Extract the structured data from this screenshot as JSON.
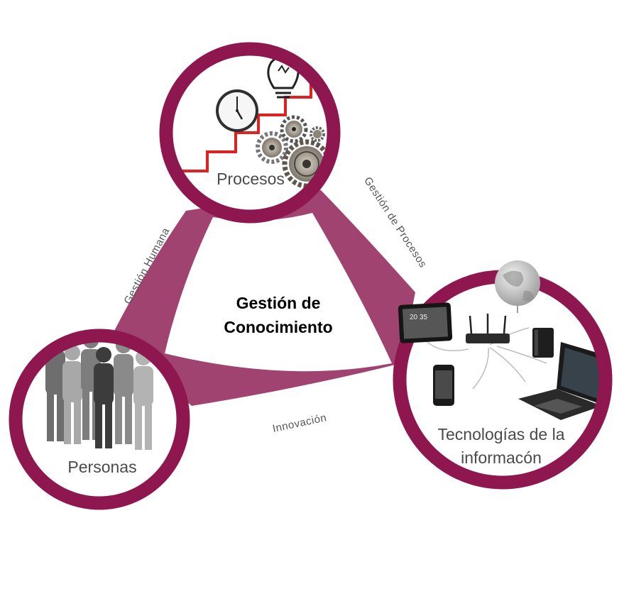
{
  "center": {
    "line1": "Gestión de",
    "line2": "Conocimiento"
  },
  "nodes": {
    "procesos": "Procesos",
    "personas": "Personas",
    "tecnologias_line1": "Tecnologías de la",
    "tecnologias_line2": "informacón"
  },
  "edges": {
    "gestion_humana": "Gestión Humana",
    "gestion_procesos": "Gestión de Procesos",
    "innovacion": "Innovación"
  },
  "tablet_clock": "20 35",
  "colors": {
    "ring": "#8f1750",
    "band": "#a04371",
    "stairs": "#e02121"
  }
}
